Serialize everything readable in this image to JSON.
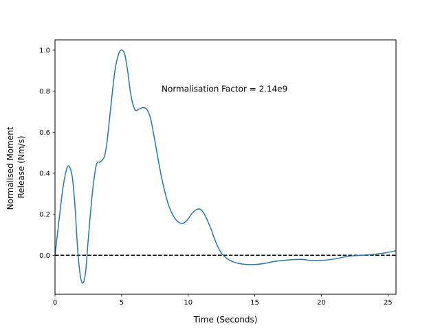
{
  "chart_data": {
    "type": "line",
    "title": "",
    "xlabel": "Time (Seconds)",
    "ylabel": [
      "Normalised Moment",
      "Release (Nm/s)"
    ],
    "xlim": [
      0,
      25.6
    ],
    "ylim": [
      -0.19,
      1.05
    ],
    "xticks": [
      0,
      5,
      10,
      15,
      20,
      25
    ],
    "yticks": [
      0.0,
      0.2,
      0.4,
      0.6,
      0.8,
      1.0
    ],
    "xtick_labels": [
      "0",
      "5",
      "10",
      "15",
      "20",
      "25"
    ],
    "ytick_labels": [
      "0.0",
      "0.2",
      "0.4",
      "0.6",
      "0.8",
      "1.0"
    ],
    "grid": false,
    "annotation": {
      "text": "Normalisation Factor = 2.14e9",
      "x": 8.0,
      "y": 0.81
    },
    "reference_line": {
      "y": 0.0,
      "style": "dashed",
      "color": "#000000"
    },
    "series": [
      {
        "color": "#1f77b4",
        "x": [
          0.0,
          0.3,
          0.6,
          0.9,
          1.1,
          1.3,
          1.5,
          1.7,
          1.9,
          2.1,
          2.3,
          2.5,
          2.8,
          3.1,
          3.4,
          3.7,
          3.9,
          4.2,
          4.5,
          4.8,
          5.05,
          5.25,
          5.45,
          5.7,
          6.0,
          6.3,
          6.6,
          6.9,
          7.2,
          7.6,
          8.0,
          8.5,
          9.0,
          9.5,
          9.9,
          10.3,
          10.7,
          11.0,
          11.3,
          11.7,
          12.1,
          12.5,
          12.9,
          13.3,
          13.8,
          14.4,
          15.0,
          15.7,
          16.5,
          17.5,
          18.5,
          19.2,
          20.0,
          21.0,
          22.0,
          23.0,
          24.0,
          24.8,
          25.6
        ],
        "y": [
          0.0,
          0.17,
          0.33,
          0.425,
          0.43,
          0.38,
          0.24,
          0.03,
          -0.1,
          -0.135,
          -0.08,
          0.08,
          0.3,
          0.44,
          0.455,
          0.48,
          0.55,
          0.73,
          0.9,
          0.985,
          1.0,
          0.975,
          0.9,
          0.78,
          0.71,
          0.712,
          0.72,
          0.71,
          0.66,
          0.52,
          0.38,
          0.25,
          0.18,
          0.155,
          0.17,
          0.205,
          0.225,
          0.22,
          0.19,
          0.13,
          0.06,
          0.01,
          -0.015,
          -0.03,
          -0.04,
          -0.045,
          -0.045,
          -0.04,
          -0.03,
          -0.023,
          -0.02,
          -0.025,
          -0.025,
          -0.018,
          -0.005,
          0.0,
          0.005,
          0.012,
          0.022
        ]
      }
    ]
  }
}
